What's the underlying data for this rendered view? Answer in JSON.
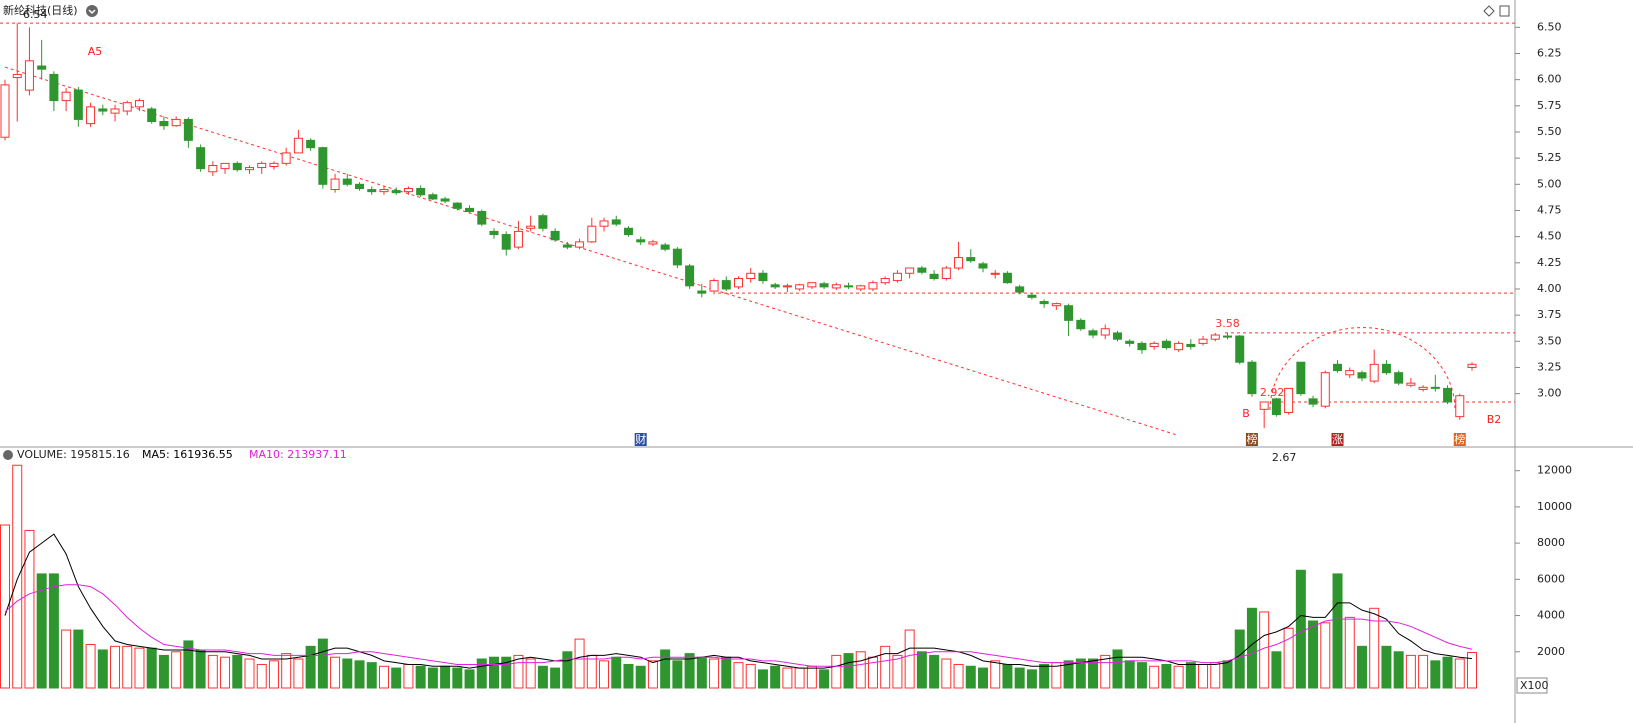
{
  "chart_data": {
    "type": "candlestick",
    "title": "新纶科技(日线)",
    "up_color": "#ff3030",
    "down_color": "#2f962f",
    "ylim": [
      2.49,
      6.57
    ],
    "yticks": [
      {
        "value": 3.0,
        "label": "3.00"
      },
      {
        "value": 3.25,
        "label": "3.25"
      },
      {
        "value": 3.5,
        "label": "3.50"
      },
      {
        "value": 3.75,
        "label": "3.75"
      },
      {
        "value": 4.0,
        "label": "4.00"
      },
      {
        "value": 4.25,
        "label": "4.25"
      },
      {
        "value": 4.5,
        "label": "4.50"
      },
      {
        "value": 4.75,
        "label": "4.75"
      },
      {
        "value": 5.0,
        "label": "5.00"
      },
      {
        "value": 5.25,
        "label": "5.25"
      },
      {
        "value": 5.5,
        "label": "5.50"
      },
      {
        "value": 5.75,
        "label": "5.75"
      },
      {
        "value": 6.0,
        "label": "6.00"
      },
      {
        "value": 6.25,
        "label": "6.25"
      },
      {
        "value": 6.5,
        "label": "6.50"
      }
    ],
    "candles": [
      [
        5.45,
        6.0,
        5.42,
        5.95
      ],
      [
        6.02,
        6.54,
        5.6,
        6.05
      ],
      [
        5.9,
        6.5,
        5.85,
        6.18
      ],
      [
        6.13,
        6.38,
        6.0,
        6.1
      ],
      [
        6.05,
        6.08,
        5.7,
        5.8
      ],
      [
        5.8,
        5.92,
        5.7,
        5.88
      ],
      [
        5.9,
        5.93,
        5.55,
        5.62
      ],
      [
        5.58,
        5.78,
        5.55,
        5.74
      ],
      [
        5.72,
        5.76,
        5.66,
        5.7
      ],
      [
        5.68,
        5.76,
        5.6,
        5.72
      ],
      [
        5.7,
        5.8,
        5.66,
        5.78
      ],
      [
        5.74,
        5.82,
        5.7,
        5.8
      ],
      [
        5.72,
        5.74,
        5.58,
        5.6
      ],
      [
        5.6,
        5.65,
        5.52,
        5.56
      ],
      [
        5.56,
        5.65,
        5.55,
        5.62
      ],
      [
        5.62,
        5.64,
        5.35,
        5.42
      ],
      [
        5.35,
        5.38,
        5.12,
        5.15
      ],
      [
        5.12,
        5.22,
        5.08,
        5.18
      ],
      [
        5.15,
        5.2,
        5.1,
        5.2
      ],
      [
        5.2,
        5.22,
        5.12,
        5.14
      ],
      [
        5.14,
        5.18,
        5.1,
        5.16
      ],
      [
        5.16,
        5.22,
        5.1,
        5.2
      ],
      [
        5.17,
        5.22,
        5.14,
        5.2
      ],
      [
        5.2,
        5.35,
        5.18,
        5.3
      ],
      [
        5.3,
        5.52,
        5.3,
        5.44
      ],
      [
        5.42,
        5.44,
        5.32,
        5.35
      ],
      [
        5.35,
        5.36,
        4.96,
        5.0
      ],
      [
        4.95,
        5.1,
        4.92,
        5.05
      ],
      [
        5.05,
        5.1,
        4.98,
        5.0
      ],
      [
        5.0,
        5.02,
        4.94,
        4.96
      ],
      [
        4.95,
        4.98,
        4.9,
        4.93
      ],
      [
        4.93,
        4.98,
        4.9,
        4.95
      ],
      [
        4.94,
        4.97,
        4.9,
        4.92
      ],
      [
        4.93,
        4.98,
        4.9,
        4.96
      ],
      [
        4.96,
        4.99,
        4.88,
        4.9
      ],
      [
        4.9,
        4.92,
        4.85,
        4.86
      ],
      [
        4.86,
        4.88,
        4.82,
        4.84
      ],
      [
        4.82,
        4.83,
        4.75,
        4.77
      ],
      [
        4.77,
        4.8,
        4.72,
        4.74
      ],
      [
        4.74,
        4.76,
        4.6,
        4.62
      ],
      [
        4.55,
        4.58,
        4.48,
        4.52
      ],
      [
        4.52,
        4.55,
        4.32,
        4.38
      ],
      [
        4.4,
        4.65,
        4.38,
        4.55
      ],
      [
        4.58,
        4.7,
        4.55,
        4.6
      ],
      [
        4.7,
        4.72,
        4.55,
        4.58
      ],
      [
        4.55,
        4.58,
        4.45,
        4.47
      ],
      [
        4.42,
        4.45,
        4.38,
        4.4
      ],
      [
        4.4,
        4.48,
        4.38,
        4.45
      ],
      [
        4.45,
        4.68,
        4.44,
        4.6
      ],
      [
        4.6,
        4.68,
        4.55,
        4.65
      ],
      [
        4.66,
        4.7,
        4.6,
        4.62
      ],
      [
        4.58,
        4.6,
        4.5,
        4.52
      ],
      [
        4.47,
        4.5,
        4.42,
        4.45
      ],
      [
        4.43,
        4.47,
        4.41,
        4.45
      ],
      [
        4.42,
        4.44,
        4.36,
        4.38
      ],
      [
        4.38,
        4.4,
        4.2,
        4.23
      ],
      [
        4.22,
        4.24,
        4.0,
        4.03
      ],
      [
        3.98,
        4.05,
        3.92,
        3.96
      ],
      [
        3.98,
        4.1,
        3.95,
        4.08
      ],
      [
        4.08,
        4.12,
        3.98,
        4.0
      ],
      [
        4.02,
        4.12,
        4.0,
        4.1
      ],
      [
        4.1,
        4.2,
        4.06,
        4.15
      ],
      [
        4.15,
        4.18,
        4.05,
        4.08
      ],
      [
        4.04,
        4.06,
        4.0,
        4.02
      ],
      [
        4.02,
        4.05,
        3.97,
        4.03
      ],
      [
        4.0,
        4.05,
        3.98,
        4.04
      ],
      [
        4.02,
        4.06,
        4.0,
        4.06
      ],
      [
        4.05,
        4.07,
        4.0,
        4.02
      ],
      [
        4.01,
        4.06,
        3.99,
        4.04
      ],
      [
        4.03,
        4.06,
        4.0,
        4.02
      ],
      [
        4.0,
        4.04,
        3.98,
        4.03
      ],
      [
        4.0,
        4.08,
        3.98,
        4.06
      ],
      [
        4.06,
        4.12,
        4.04,
        4.1
      ],
      [
        4.08,
        4.18,
        4.06,
        4.15
      ],
      [
        4.15,
        4.2,
        4.1,
        4.2
      ],
      [
        4.2,
        4.22,
        4.14,
        4.16
      ],
      [
        4.14,
        4.18,
        4.08,
        4.1
      ],
      [
        4.1,
        4.22,
        4.08,
        4.2
      ],
      [
        4.2,
        4.45,
        4.18,
        4.3
      ],
      [
        4.3,
        4.38,
        4.25,
        4.27
      ],
      [
        4.24,
        4.26,
        4.16,
        4.2
      ],
      [
        4.14,
        4.18,
        4.1,
        4.15
      ],
      [
        4.15,
        4.17,
        4.05,
        4.06
      ],
      [
        4.02,
        4.04,
        3.95,
        3.97
      ],
      [
        3.94,
        3.96,
        3.9,
        3.92
      ],
      [
        3.88,
        3.9,
        3.82,
        3.86
      ],
      [
        3.84,
        3.87,
        3.8,
        3.86
      ],
      [
        3.84,
        3.86,
        3.55,
        3.7
      ],
      [
        3.7,
        3.72,
        3.6,
        3.62
      ],
      [
        3.6,
        3.62,
        3.53,
        3.56
      ],
      [
        3.56,
        3.66,
        3.52,
        3.62
      ],
      [
        3.58,
        3.6,
        3.5,
        3.52
      ],
      [
        3.5,
        3.52,
        3.45,
        3.48
      ],
      [
        3.48,
        3.5,
        3.38,
        3.42
      ],
      [
        3.45,
        3.5,
        3.42,
        3.48
      ],
      [
        3.5,
        3.52,
        3.42,
        3.44
      ],
      [
        3.42,
        3.5,
        3.4,
        3.48
      ],
      [
        3.47,
        3.52,
        3.42,
        3.45
      ],
      [
        3.48,
        3.55,
        3.46,
        3.52
      ],
      [
        3.52,
        3.58,
        3.5,
        3.56
      ],
      [
        3.55,
        3.58,
        3.52,
        3.54
      ],
      [
        3.55,
        3.56,
        3.28,
        3.3
      ],
      [
        3.3,
        3.32,
        2.97,
        3.0
      ],
      [
        2.85,
        2.92,
        2.67,
        2.92
      ],
      [
        2.95,
        2.96,
        2.78,
        2.8
      ],
      [
        2.82,
        3.05,
        2.8,
        3.05
      ],
      [
        3.3,
        3.3,
        2.98,
        3.0
      ],
      [
        2.95,
        2.98,
        2.87,
        2.9
      ],
      [
        2.88,
        3.22,
        2.86,
        3.2
      ],
      [
        3.28,
        3.32,
        3.2,
        3.22
      ],
      [
        3.18,
        3.25,
        3.15,
        3.22
      ],
      [
        3.2,
        3.22,
        3.12,
        3.15
      ],
      [
        3.12,
        3.42,
        3.1,
        3.28
      ],
      [
        3.28,
        3.32,
        3.18,
        3.2
      ],
      [
        3.2,
        3.22,
        3.08,
        3.1
      ],
      [
        3.08,
        3.15,
        3.06,
        3.1
      ],
      [
        3.04,
        3.08,
        3.02,
        3.06
      ],
      [
        3.06,
        3.18,
        3.02,
        3.05
      ],
      [
        3.05,
        3.08,
        2.9,
        2.92
      ],
      [
        2.78,
        3.0,
        2.75,
        2.98
      ],
      [
        3.25,
        3.3,
        3.22,
        3.28
      ]
    ],
    "hlines": [
      6.54,
      3.96,
      3.58,
      2.92
    ],
    "trendline": {
      "x": [
        0,
        96
      ],
      "y": [
        6.12,
        2.6
      ]
    },
    "price_labels": [
      {
        "value": 6.54,
        "label": "6.54",
        "at": 1
      },
      {
        "value": 3.58,
        "label": "3.58",
        "at": 100
      },
      {
        "value": 2.92,
        "label": "2.92",
        "at": 103
      },
      {
        "value": 2.67,
        "label": "2.67",
        "at": 103
      }
    ],
    "notes": [
      "A5",
      "B",
      "B2"
    ],
    "events": [
      {
        "label": "财",
        "at": 52
      },
      {
        "label": "榜",
        "at": 102
      },
      {
        "label": "涨",
        "at": 109
      },
      {
        "label": "榜",
        "at": 119
      }
    ],
    "volume": {
      "header": "VOLUME: 195815.16",
      "ma5_label": "MA5: 161936.55",
      "ma10_label": "MA10: 213937.11",
      "unit": "X100",
      "ylim": [
        0,
        12700
      ],
      "yticks": [
        2000,
        4000,
        6000,
        8000,
        10000,
        12000
      ],
      "values": [
        9000,
        12300,
        8700,
        6300,
        6300,
        3200,
        3200,
        2400,
        2100,
        2300,
        2300,
        2200,
        2200,
        1800,
        2000,
        2600,
        2100,
        1800,
        1700,
        1800,
        1600,
        1300,
        1500,
        1900,
        1600,
        2300,
        2700,
        1700,
        1600,
        1500,
        1400,
        1200,
        1100,
        1300,
        1200,
        1100,
        1200,
        1100,
        1000,
        1600,
        1700,
        1700,
        1800,
        1600,
        1200,
        1100,
        2000,
        2700,
        1800,
        1500,
        1700,
        1300,
        1200,
        1500,
        2100,
        1500,
        1900,
        1700,
        1600,
        1700,
        1400,
        1300,
        1000,
        1200,
        1100,
        1100,
        1200,
        1000,
        1800,
        1900,
        2000,
        1700,
        2300,
        1800,
        3200,
        2000,
        1800,
        1600,
        1300,
        1200,
        1100,
        1500,
        1300,
        1100,
        1000,
        1300,
        1400,
        1500,
        1600,
        1600,
        1800,
        2100,
        1500,
        1400,
        1200,
        1300,
        1200,
        1400,
        1300,
        1400,
        1500,
        3200,
        4400,
        4200,
        2000,
        3300,
        6500,
        3700,
        3600,
        6300,
        3900,
        2300,
        4400,
        2300,
        2000,
        1800,
        1800,
        1500,
        1700,
        1600,
        1958.1516
      ],
      "ma5": {
        "color": "#000000",
        "values": [
          4000,
          6000,
          7500,
          8000,
          8500,
          7400,
          5600,
          4400,
          3400,
          2600,
          2400,
          2300,
          2200,
          2100,
          2100,
          2100,
          2000,
          2000,
          2000,
          1900,
          1800,
          1600,
          1600,
          1600,
          1700,
          1800,
          2000,
          2200,
          2200,
          2000,
          1800,
          1500,
          1400,
          1300,
          1300,
          1200,
          1200,
          1200,
          1100,
          1200,
          1300,
          1400,
          1600,
          1700,
          1600,
          1500,
          1500,
          1700,
          1800,
          1800,
          1900,
          1800,
          1700,
          1400,
          1600,
          1600,
          1600,
          1700,
          1800,
          1700,
          1700,
          1500,
          1400,
          1300,
          1200,
          1100,
          1100,
          1100,
          1200,
          1400,
          1500,
          1700,
          1900,
          1900,
          2200,
          2200,
          2200,
          2100,
          2000,
          1800,
          1500,
          1400,
          1300,
          1300,
          1200,
          1200,
          1200,
          1300,
          1400,
          1500,
          1600,
          1700,
          1700,
          1700,
          1600,
          1500,
          1300,
          1300,
          1300,
          1300,
          1400,
          1800,
          2400,
          2900,
          3100,
          3400,
          4000,
          3900,
          3900,
          4700,
          4700,
          4300,
          4100,
          3800,
          3000,
          2600,
          2100,
          1900,
          1800,
          1700,
          1619.3655
        ]
      },
      "ma10": {
        "color": "#e020e0",
        "values": [
          4200,
          4800,
          5200,
          5400,
          5600,
          5700,
          5700,
          5600,
          5200,
          4600,
          3900,
          3300,
          2800,
          2400,
          2300,
          2200,
          2100,
          2100,
          2100,
          2000,
          1900,
          1900,
          1800,
          1800,
          1800,
          1800,
          1800,
          1900,
          1900,
          2000,
          2000,
          1900,
          1800,
          1700,
          1600,
          1500,
          1400,
          1300,
          1300,
          1300,
          1300,
          1300,
          1400,
          1400,
          1400,
          1500,
          1600,
          1600,
          1600,
          1600,
          1700,
          1700,
          1600,
          1700,
          1700,
          1700,
          1700,
          1700,
          1700,
          1600,
          1600,
          1600,
          1500,
          1500,
          1400,
          1300,
          1200,
          1200,
          1200,
          1200,
          1300,
          1400,
          1500,
          1600,
          1800,
          1900,
          2000,
          2000,
          2000,
          2000,
          1900,
          1800,
          1700,
          1600,
          1500,
          1400,
          1400,
          1400,
          1400,
          1400,
          1400,
          1400,
          1500,
          1500,
          1500,
          1500,
          1500,
          1500,
          1400,
          1400,
          1500,
          1700,
          1900,
          2200,
          2400,
          2700,
          3100,
          3400,
          3700,
          3800,
          3800,
          3800,
          3700,
          3700,
          3600,
          3400,
          3100,
          2800,
          2500,
          2300,
          2139.3711
        ]
      }
    }
  }
}
